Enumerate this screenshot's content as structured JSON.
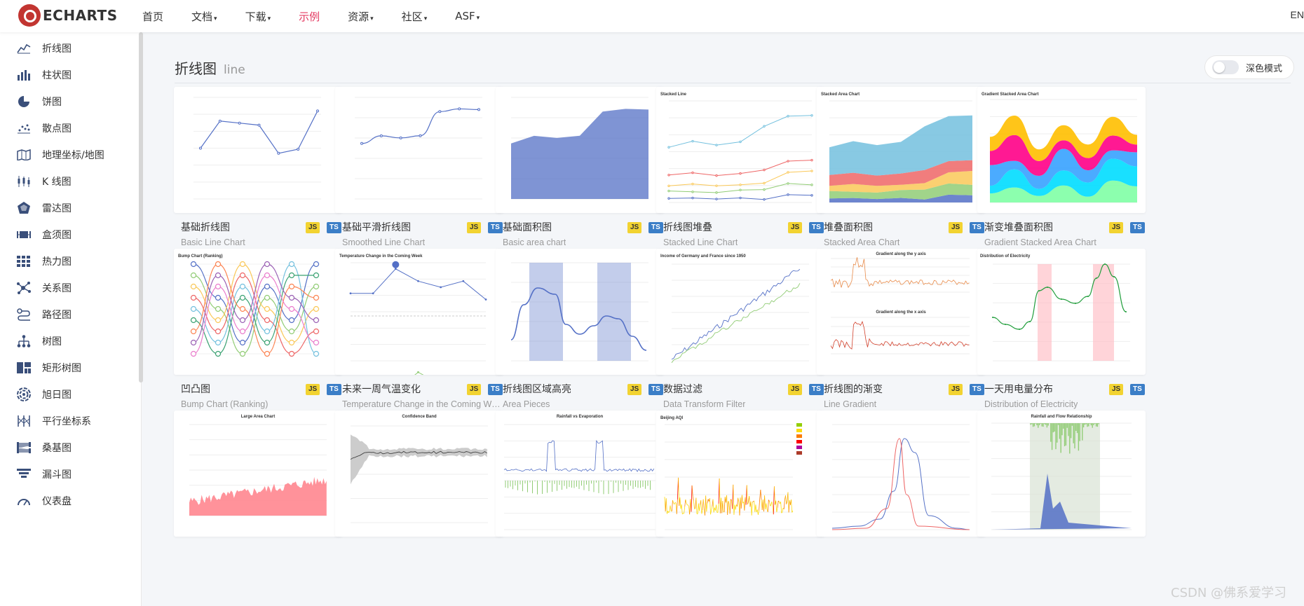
{
  "nav": {
    "logo_text": "ECHARTS",
    "items": [
      {
        "label": "首页",
        "caret": ""
      },
      {
        "label": "文档",
        "caret": "▾"
      },
      {
        "label": "下载",
        "caret": "▾"
      },
      {
        "label": "示例",
        "caret": ""
      },
      {
        "label": "资源",
        "caret": "▾"
      },
      {
        "label": "社区",
        "caret": "▾"
      },
      {
        "label": "ASF",
        "caret": "▾"
      }
    ],
    "active_item": "示例",
    "lang": "EN",
    "accent": "#e43961"
  },
  "sidebar": {
    "items": [
      {
        "label": "折线图",
        "icon": "line-chart-icon"
      },
      {
        "label": "柱状图",
        "icon": "bar-chart-icon"
      },
      {
        "label": "饼图",
        "icon": "pie-chart-icon"
      },
      {
        "label": "散点图",
        "icon": "scatter-icon"
      },
      {
        "label": "地理坐标/地图",
        "icon": "map-icon"
      },
      {
        "label": "K 线图",
        "icon": "candlestick-icon"
      },
      {
        "label": "雷达图",
        "icon": "radar-icon"
      },
      {
        "label": "盒须图",
        "icon": "boxplot-icon"
      },
      {
        "label": "热力图",
        "icon": "heatmap-icon"
      },
      {
        "label": "关系图",
        "icon": "graph-icon"
      },
      {
        "label": "路径图",
        "icon": "lines-icon"
      },
      {
        "label": "树图",
        "icon": "tree-icon"
      },
      {
        "label": "矩形树图",
        "icon": "treemap-icon"
      },
      {
        "label": "旭日图",
        "icon": "sunburst-icon"
      },
      {
        "label": "平行坐标系",
        "icon": "parallel-icon"
      },
      {
        "label": "桑基图",
        "icon": "sankey-icon"
      },
      {
        "label": "漏斗图",
        "icon": "funnel-icon"
      },
      {
        "label": "仪表盘",
        "icon": "gauge-icon"
      }
    ],
    "icon_color": "#3a4f7a"
  },
  "main": {
    "title": "折线图",
    "subtitle": "line",
    "dark_mode_label": "深色模式",
    "dark_mode_on": false
  },
  "badges": {
    "js": "JS",
    "ts": "TS"
  },
  "cards": [
    {
      "title": "基础折线图",
      "subtitle": "Basic Line Chart",
      "thumb": "basic-line"
    },
    {
      "title": "基础平滑折线图",
      "subtitle": "Smoothed Line Chart",
      "thumb": "smooth-line"
    },
    {
      "title": "基础面积图",
      "subtitle": "Basic area chart",
      "thumb": "basic-area"
    },
    {
      "title": "折线图堆叠",
      "subtitle": "Stacked Line Chart",
      "thumb": "stacked-line",
      "thumb_title": "Stacked Line"
    },
    {
      "title": "堆叠面积图",
      "subtitle": "Stacked Area Chart",
      "thumb": "stacked-area",
      "thumb_title": "Stacked Area Chart"
    },
    {
      "title": "渐变堆叠面积图",
      "subtitle": "Gradient Stacked Area Chart",
      "thumb": "gradient-stacked",
      "thumb_title": "Gradient Stacked Area Chart"
    },
    {
      "title": "凹凸图",
      "subtitle": "Bump Chart (Ranking)",
      "thumb": "bump",
      "thumb_title": "Bump Chart (Ranking)"
    },
    {
      "title": "未来一周气温变化",
      "subtitle": "Temperature Change in the Coming Week",
      "thumb": "temperature",
      "thumb_title": "Temperature Change in the Coming Week"
    },
    {
      "title": "折线图区域高亮",
      "subtitle": "Area Pieces",
      "thumb": "area-pieces"
    },
    {
      "title": "数据过滤",
      "subtitle": "Data Transform Filter",
      "thumb": "transform-filter",
      "thumb_title": "Income of Germany and France since 1950"
    },
    {
      "title": "折线图的渐变",
      "subtitle": "Line Gradient",
      "thumb": "line-gradient",
      "thumb_title": "Gradient along the y axis",
      "thumb_title2": "Gradient along the x axis"
    },
    {
      "title": "一天用电量分布",
      "subtitle": "Distribution of Electricity",
      "thumb": "electricity",
      "thumb_title": "Distribution of Electricity"
    },
    {
      "title": "",
      "subtitle": "",
      "thumb": "large-area",
      "thumb_title": "Large Area Chart"
    },
    {
      "title": "",
      "subtitle": "",
      "thumb": "confidence-band",
      "thumb_title": "Confidence Band"
    },
    {
      "title": "",
      "subtitle": "",
      "thumb": "rainfall-evap",
      "thumb_title": "Rainfall vs Evaporation"
    },
    {
      "title": "",
      "subtitle": "",
      "thumb": "beijing-aqi",
      "thumb_title": "Beijing AQI"
    },
    {
      "title": "",
      "subtitle": "",
      "thumb": "precipitation",
      "thumb_title": ""
    },
    {
      "title": "",
      "subtitle": "",
      "thumb": "rainfall-flow",
      "thumb_title": "Rainfall and Flow Relationship"
    }
  ],
  "watermark": "CSDN @佛系爱学习"
}
